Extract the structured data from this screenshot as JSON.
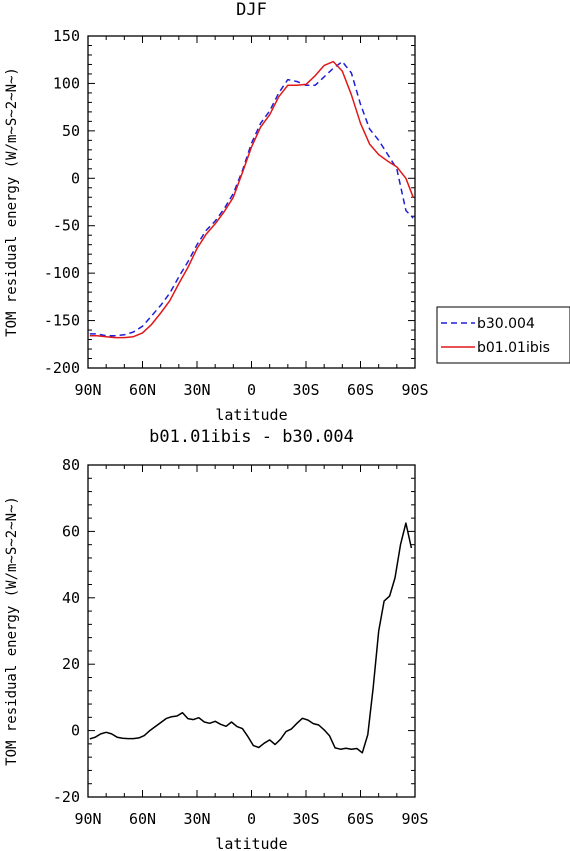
{
  "chart_data": [
    {
      "type": "line",
      "title": "DJF",
      "xlabel": "latitude",
      "ylabel": "TOM residual energy (W/m~S~2~N~)",
      "xlim": [
        -90,
        90
      ],
      "ylim": [
        -200,
        150
      ],
      "xticks": [
        -90,
        -60,
        -30,
        0,
        30,
        60,
        90
      ],
      "xtick_labels": [
        "90N",
        "60N",
        "30N",
        "0",
        "30S",
        "60S",
        "90S"
      ],
      "yticks": [
        -200,
        -150,
        -100,
        -50,
        0,
        50,
        100,
        150
      ],
      "ytick_labels": [
        "-200",
        "-150",
        "-100",
        "-50",
        "0",
        "50",
        "100",
        "150"
      ],
      "legend": "right",
      "series": [
        {
          "name": "b30.004",
          "color": "#1f1fd9",
          "dash": "dashed",
          "x": [
            -89,
            -85,
            -80,
            -75,
            -70,
            -65,
            -60,
            -55,
            -50,
            -45,
            -40,
            -35,
            -30,
            -25,
            -20,
            -15,
            -10,
            -5,
            0,
            5,
            10,
            15,
            20,
            25,
            30,
            35,
            40,
            45,
            50,
            55,
            60,
            65,
            70,
            75,
            80,
            85,
            89
          ],
          "y": [
            -164,
            -164,
            -166,
            -166,
            -165,
            -162,
            -156,
            -145,
            -134,
            -121,
            -104,
            -88,
            -70,
            -55,
            -45,
            -32,
            -16,
            8,
            37,
            58,
            71,
            90,
            104,
            102,
            98,
            98,
            107,
            116,
            123,
            111,
            78,
            52,
            40,
            25,
            10,
            -34,
            -42
          ]
        },
        {
          "name": "b01.01ibis",
          "color": "#e01818",
          "dash": "solid",
          "x": [
            -89,
            -85,
            -80,
            -75,
            -70,
            -65,
            -60,
            -55,
            -50,
            -45,
            -40,
            -35,
            -30,
            -25,
            -20,
            -15,
            -10,
            -5,
            0,
            5,
            10,
            15,
            20,
            25,
            30,
            35,
            40,
            45,
            50,
            55,
            60,
            65,
            70,
            75,
            80,
            85,
            89
          ],
          "y": [
            -166,
            -166,
            -167,
            -168,
            -168,
            -167,
            -163,
            -154,
            -142,
            -129,
            -111,
            -94,
            -74,
            -59,
            -48,
            -35,
            -20,
            6,
            33,
            54,
            67,
            86,
            98,
            98,
            99,
            108,
            119,
            123,
            113,
            88,
            58,
            36,
            25,
            18,
            12,
            0,
            -20
          ]
        }
      ]
    },
    {
      "type": "line",
      "title": "b01.01ibis - b30.004",
      "xlabel": "latitude",
      "ylabel": "TOM residual energy (W/m~S~2~N~)",
      "xlim": [
        -90,
        90
      ],
      "ylim": [
        -20,
        80
      ],
      "xticks": [
        -90,
        -60,
        -30,
        0,
        30,
        60,
        90
      ],
      "xtick_labels": [
        "90N",
        "60N",
        "30N",
        "0",
        "30S",
        "60S",
        "90S"
      ],
      "yticks": [
        -20,
        0,
        20,
        40,
        60,
        80
      ],
      "ytick_labels": [
        "-20",
        "0",
        "20",
        "40",
        "60",
        "80"
      ],
      "series": [
        {
          "name": "",
          "color": "#000000",
          "dash": "solid",
          "x": [
            -89,
            -86,
            -83,
            -80,
            -77,
            -74,
            -71,
            -68,
            -65,
            -62,
            -59,
            -56,
            -53,
            -50,
            -47,
            -44,
            -41,
            -38,
            -35,
            -32,
            -29,
            -26,
            -23,
            -20,
            -17,
            -14,
            -11,
            -8,
            -5,
            -2,
            1,
            4,
            7,
            10,
            13,
            16,
            19,
            22,
            25,
            28,
            31,
            34,
            37,
            40,
            43,
            46,
            49,
            52,
            55,
            58,
            61,
            64,
            67,
            70,
            73,
            76,
            79,
            82,
            85,
            88
          ],
          "y": [
            -2.5,
            -2,
            -1,
            -0.5,
            -1,
            -2,
            -2.3,
            -2.4,
            -2.4,
            -2.2,
            -1.5,
            0,
            1.2,
            2.4,
            3.6,
            4.2,
            4.4,
            5.4,
            3.6,
            3.3,
            3.9,
            2.6,
            2.2,
            2.8,
            1.9,
            1.3,
            2.6,
            1.2,
            0.6,
            -1.8,
            -4.5,
            -5.1,
            -3.8,
            -2.8,
            -4.2,
            -2.6,
            -0.3,
            0.5,
            2.2,
            3.7,
            3.2,
            2.1,
            1.7,
            0.2,
            -1.6,
            -5.2,
            -5.6,
            -5.3,
            -5.6,
            -5.4,
            -6.7,
            -1.2,
            13,
            30,
            39,
            40.5,
            46,
            56,
            62.5,
            55
          ]
        }
      ]
    }
  ]
}
